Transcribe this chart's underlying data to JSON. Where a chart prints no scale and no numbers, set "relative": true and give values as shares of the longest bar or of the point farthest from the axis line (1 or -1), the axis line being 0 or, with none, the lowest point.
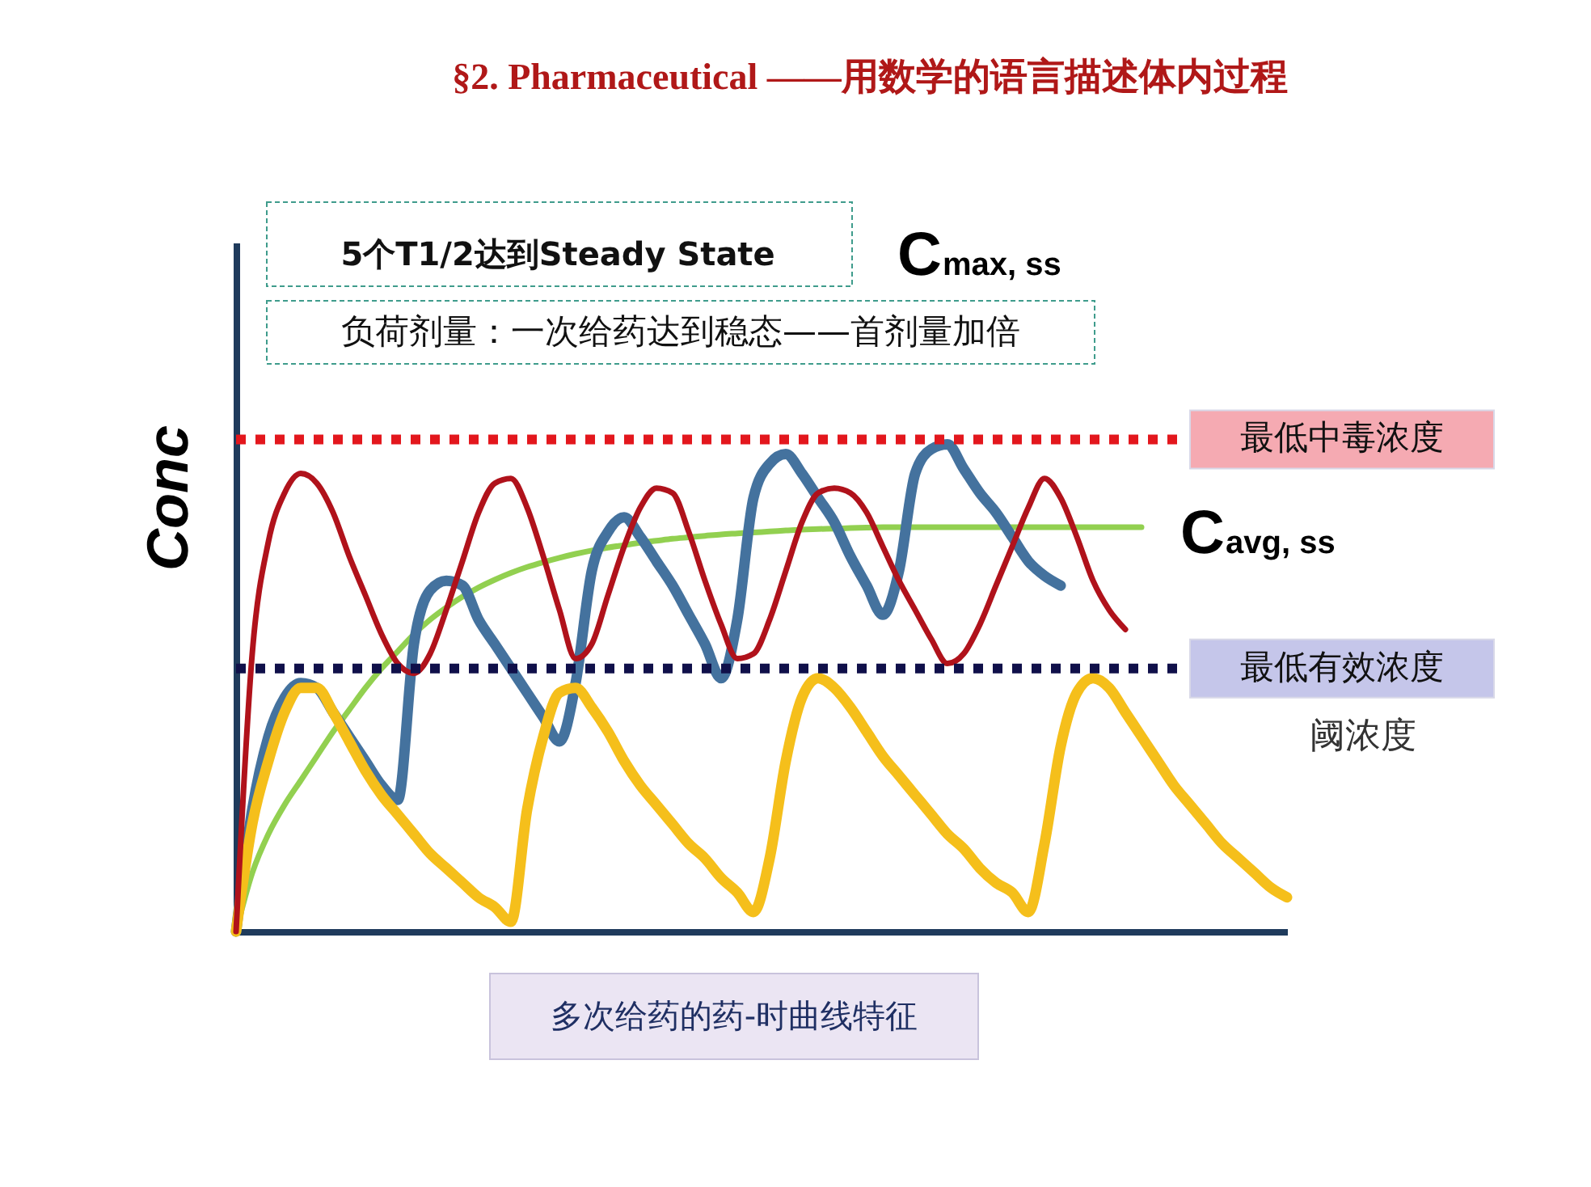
{
  "chart_data": {
    "type": "line",
    "title": "§2. Pharmaceutical ——用数学的语言描述体内过程",
    "ylabel": "Conc",
    "relative": true,
    "categories": [
      null,
      null,
      null,
      null,
      null,
      null,
      null,
      null,
      null,
      null,
      null,
      null,
      null,
      null,
      null,
      null,
      null,
      null,
      null,
      null,
      null,
      null,
      null,
      null,
      null,
      null,
      null,
      null,
      null,
      null,
      null,
      null,
      null,
      null,
      null,
      null,
      null,
      null,
      null,
      null,
      null,
      null,
      null,
      null,
      null,
      null,
      null,
      null,
      null,
      null,
      null,
      null,
      null,
      null,
      null,
      null,
      null,
      null,
      null,
      null,
      null,
      null,
      null,
      null,
      null,
      null
    ],
    "series": [
      {
        "color": "#92d050",
        "values": [
          0,
          0.12,
          0.2,
          0.26,
          0.31,
          0.36,
          0.41,
          0.455,
          0.5,
          0.54,
          0.575,
          0.61,
          0.64,
          0.665,
          0.687,
          0.706,
          0.722,
          0.736,
          0.748,
          0.758,
          0.767,
          0.775,
          0.782,
          0.788,
          0.793,
          0.798,
          0.802,
          0.806,
          0.809,
          0.812,
          0.815,
          0.817,
          0.819,
          0.821,
          0.823,
          0.825,
          0.826,
          0.827,
          0.828,
          0.829,
          0.83,
          0.83,
          0.83,
          0.83,
          0.83,
          0.83,
          0.83,
          0.83,
          0.83,
          0.83,
          0.83,
          0.83,
          0.83,
          0.83,
          0.83,
          0.83,
          0.83,
          null,
          null,
          null,
          null,
          null,
          null,
          null,
          null,
          null
        ]
      },
      {
        "color": "#44729e",
        "values": [
          0,
          0.25,
          0.4,
          0.48,
          0.51,
          0.5,
          0.45,
          0.4,
          0.35,
          0.3,
          0.27,
          0.59,
          0.7,
          0.72,
          0.71,
          0.64,
          0.59,
          0.54,
          0.49,
          0.44,
          0.39,
          0.51,
          0.74,
          0.82,
          0.85,
          0.81,
          0.76,
          0.71,
          0.65,
          0.59,
          0.52,
          0.64,
          0.89,
          0.96,
          0.98,
          0.94,
          0.89,
          0.84,
          0.77,
          0.71,
          0.65,
          0.74,
          0.94,
          0.99,
          1.0,
          0.95,
          0.9,
          0.86,
          0.81,
          0.76,
          0.73,
          0.71,
          null,
          null,
          null,
          null,
          null,
          null,
          null,
          null,
          null,
          null,
          null,
          null,
          null,
          null
        ]
      },
      {
        "color": "#f5bf1b",
        "values": [
          0,
          0.22,
          0.35,
          0.45,
          0.5,
          0.5,
          0.45,
          0.39,
          0.33,
          0.28,
          0.24,
          0.2,
          0.16,
          0.13,
          0.1,
          0.07,
          0.05,
          0.02,
          0.25,
          0.4,
          0.49,
          0.5,
          0.46,
          0.41,
          0.35,
          0.3,
          0.26,
          0.22,
          0.18,
          0.15,
          0.11,
          0.08,
          0.04,
          0.15,
          0.35,
          0.48,
          0.52,
          0.5,
          0.46,
          0.41,
          0.36,
          0.32,
          0.28,
          0.24,
          0.2,
          0.17,
          0.13,
          0.1,
          0.08,
          0.04,
          0.18,
          0.38,
          0.49,
          0.52,
          0.5,
          0.45,
          0.4,
          0.35,
          0.3,
          0.26,
          0.22,
          0.18,
          0.15,
          0.12,
          0.09,
          0.07
        ]
      },
      {
        "color": "#b0121b",
        "values": [
          0,
          0.57,
          0.8,
          0.9,
          0.94,
          0.92,
          0.86,
          0.77,
          0.69,
          0.61,
          0.55,
          0.53,
          0.57,
          0.66,
          0.76,
          0.86,
          0.92,
          0.93,
          0.87,
          0.77,
          0.66,
          0.56,
          0.59,
          0.69,
          0.79,
          0.87,
          0.91,
          0.9,
          0.82,
          0.72,
          0.63,
          0.56,
          0.57,
          0.64,
          0.74,
          0.84,
          0.9,
          0.91,
          0.9,
          0.86,
          0.79,
          0.72,
          0.66,
          0.6,
          0.55,
          0.57,
          0.63,
          0.71,
          0.79,
          0.87,
          0.93,
          0.89,
          0.81,
          0.72,
          0.66,
          0.62,
          null,
          null,
          null,
          null,
          null,
          null,
          null,
          null,
          null,
          null
        ]
      }
    ],
    "ref_lines": [
      {
        "axis": "y",
        "value": 1.01,
        "label": "最低中毒浓度",
        "color": "#e3171d",
        "line_style": "dotted"
      },
      {
        "axis": "y",
        "value": 0.54,
        "label": "最低有效浓度",
        "color": "#10104a",
        "line_style": "dotted"
      }
    ],
    "annotations": [
      "5个T1/2达到Steady State",
      "负荷剂量：一次给药达到稳态——首剂量加倍",
      "Cmax, ss",
      "Cavg, ss",
      "阈浓度",
      "多次给药的药-时曲线特征"
    ]
  }
}
